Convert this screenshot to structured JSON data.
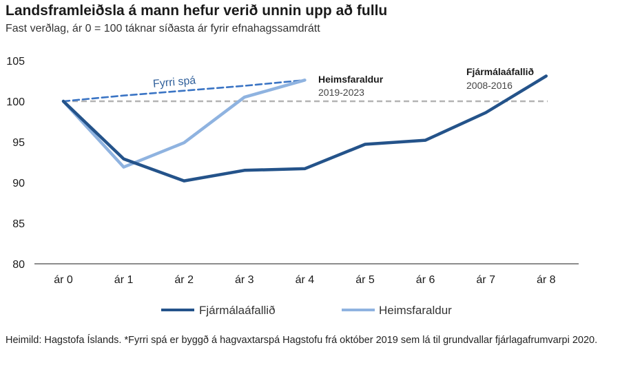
{
  "title": "Landsframleiðsla á mann hefur verið unnin upp að fullu",
  "subtitle": "Fast verðlag, ár 0 = 100 táknar síðasta ár fyrir efnahagssamdrátt",
  "source": "Heimild: Hagstofa Íslands. *Fyrri spá er byggð á hagvaxtarspá Hagstofu frá október 2019 sem lá til grundvallar fjárlagafrumvarpi 2020.",
  "colors": {
    "dark": "#24538a",
    "light": "#8fb3e0",
    "forecast": "#3a74c4",
    "reference": "#b3b3b3"
  },
  "annotations": {
    "forecast_label": "Fyrri spá",
    "covid_title": "Heimsfaraldur",
    "covid_years": "2019-2023",
    "crisis_title": "Fjármálaáfallið",
    "crisis_years": "2008-2016"
  },
  "chart_data": {
    "type": "line",
    "title": "Landsframleiðsla á mann hefur verið unnin upp að fullu",
    "subtitle": "Fast verðlag, ár 0 = 100 táknar síðasta ár fyrir efnahagssamdrátt",
    "categories": [
      "ár 0",
      "ár 1",
      "ár 2",
      "ár 3",
      "ár 4",
      "ár 5",
      "ár 6",
      "ár 7",
      "ár 8"
    ],
    "ylim": [
      80,
      105
    ],
    "yticks": [
      80,
      85,
      90,
      95,
      100,
      105
    ],
    "reference_line": 100,
    "grid": false,
    "legend_position": "bottom",
    "series": [
      {
        "name": "Fjármálaáfallið",
        "values": [
          100,
          92.9,
          90.2,
          91.5,
          91.7,
          94.7,
          95.2,
          98.6,
          103.1
        ]
      },
      {
        "name": "Heimsfaraldur",
        "values": [
          100,
          91.9,
          94.9,
          100.5,
          102.6,
          null,
          null,
          null,
          null
        ]
      },
      {
        "name": "Fyrri spá",
        "values": [
          100,
          100.7,
          101.3,
          101.9,
          102.6,
          null,
          null,
          null,
          null
        ],
        "style": "dashed"
      }
    ]
  }
}
